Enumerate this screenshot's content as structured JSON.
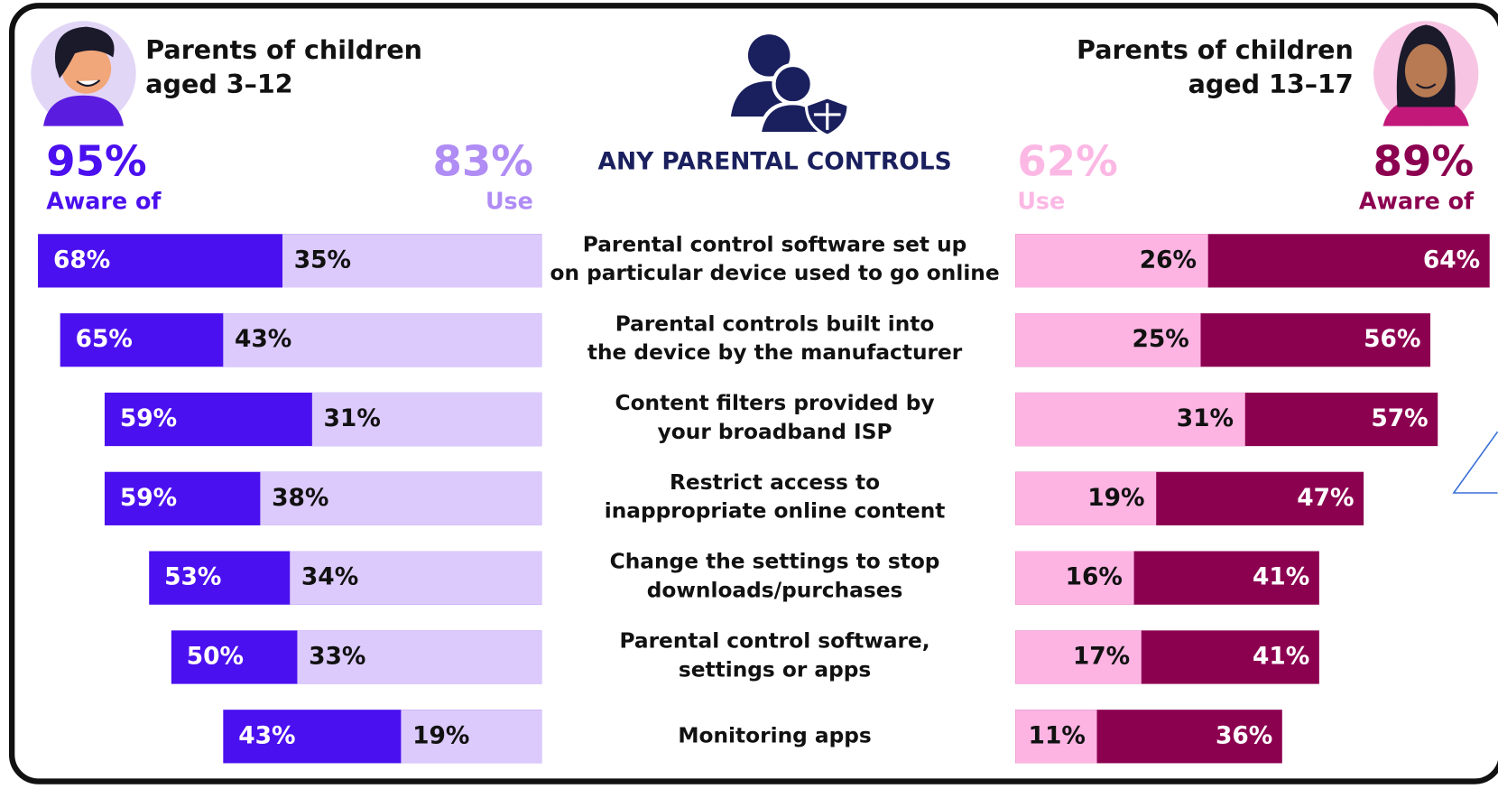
{
  "chart_data": {
    "type": "bar",
    "headline": "ANY PARENTAL CONTROLS",
    "categories": [
      [
        "Parental control software set up",
        "on particular device used to go online"
      ],
      [
        "Parental controls built into",
        "the device by the manufacturer"
      ],
      [
        "Content filters provided by",
        "your broadband ISP"
      ],
      [
        "Restrict access to",
        "inappropriate online content"
      ],
      [
        "Change the settings to stop",
        "downloads/purchases"
      ],
      [
        "Parental control software,",
        "settings or apps"
      ],
      [
        "Monitoring apps"
      ]
    ],
    "groups": [
      {
        "title": [
          "Parents of children",
          "aged 3–12"
        ],
        "series": [
          {
            "name": "Aware of",
            "color": "#4b10ef",
            "total": 95,
            "total_label": "95%",
            "total_color": "#4b10ef",
            "values": [
              68,
              65,
              59,
              59,
              53,
              50,
              43
            ],
            "value_labels": [
              "68%",
              "65%",
              "59%",
              "59%",
              "53%",
              "50%",
              "43%"
            ]
          },
          {
            "name": "Use",
            "color": "#dccafc",
            "total": 83,
            "total_label": "83%",
            "total_color": "#b08cf5",
            "values": [
              35,
              43,
              31,
              38,
              34,
              33,
              19
            ],
            "value_labels": [
              "35%",
              "43%",
              "31%",
              "38%",
              "34%",
              "33%",
              "19%"
            ]
          }
        ]
      },
      {
        "title": [
          "Parents of children",
          "aged 13–17"
        ],
        "series": [
          {
            "name": "Aware of",
            "color": "#8c0050",
            "total": 89,
            "total_label": "89%",
            "total_color": "#8c0050",
            "values": [
              64,
              56,
              57,
              47,
              41,
              41,
              36
            ],
            "value_labels": [
              "64%",
              "56%",
              "57%",
              "47%",
              "41%",
              "41%",
              "36%"
            ]
          },
          {
            "name": "Use",
            "color": "#fdb4e3",
            "total": 62,
            "total_label": "62%",
            "total_color": "#fcb8e4",
            "values": [
              26,
              25,
              31,
              19,
              16,
              17,
              11
            ],
            "value_labels": [
              "26%",
              "25%",
              "31%",
              "19%",
              "16%",
              "17%",
              "11%"
            ]
          }
        ]
      }
    ]
  }
}
